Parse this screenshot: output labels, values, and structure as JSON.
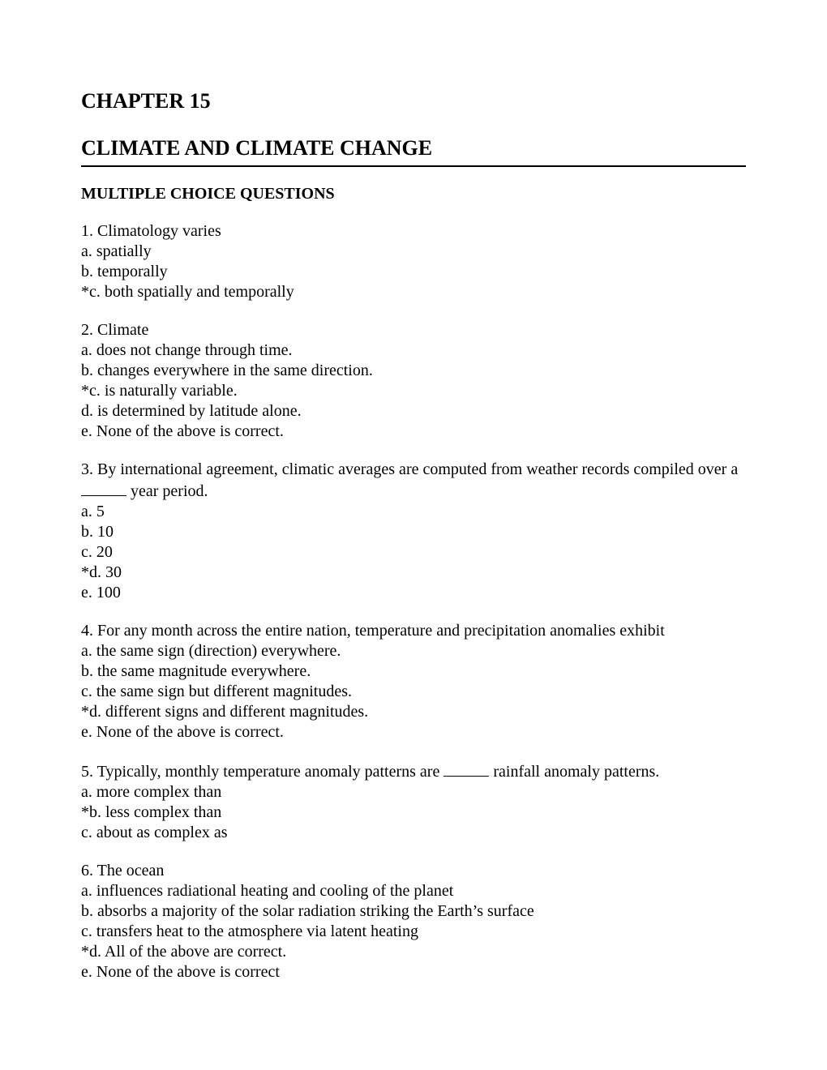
{
  "chapter_label": "CHAPTER 15",
  "title": "CLIMATE AND CLIMATE CHANGE",
  "section_heading": "MULTIPLE CHOICE QUESTIONS",
  "questions": [
    {
      "number": "1.",
      "stem": "Climatology varies",
      "stem_has_blank": false,
      "choices": [
        {
          "letter": "a.",
          "text": "spatially",
          "correct": false
        },
        {
          "letter": "b.",
          "text": "temporally",
          "correct": false
        },
        {
          "letter": "*c.",
          "text": "both spatially and temporally",
          "correct": true
        }
      ]
    },
    {
      "number": "2.",
      "stem": "Climate",
      "stem_has_blank": false,
      "choices": [
        {
          "letter": "a.",
          "text": "does not change through time.",
          "correct": false
        },
        {
          "letter": "b.",
          "text": "changes everywhere in the same direction.",
          "correct": false
        },
        {
          "letter": "*c.",
          "text": "is naturally variable.",
          "correct": true
        },
        {
          "letter": "d.",
          "text": "is determined by latitude alone.",
          "correct": false
        },
        {
          "letter": "e.",
          "text": "None of the above is correct.",
          "correct": false
        }
      ]
    },
    {
      "number": "3.",
      "stem_pre": "By international agreement, climatic averages are computed from weather records compiled over a ",
      "stem_post": " year period.",
      "stem_has_blank": true,
      "choices": [
        {
          "letter": "a.",
          "text": "5",
          "correct": false
        },
        {
          "letter": "b.",
          "text": "10",
          "correct": false
        },
        {
          "letter": "c.",
          "text": "20",
          "correct": false
        },
        {
          "letter": "*d.",
          "text": "30",
          "correct": true
        },
        {
          "letter": "e.",
          "text": "100",
          "correct": false
        }
      ]
    },
    {
      "number": "4.",
      "stem": "For any month across the entire nation, temperature and precipitation anomalies exhibit",
      "stem_has_blank": false,
      "choices": [
        {
          "letter": "a.",
          "text": "the same sign (direction) everywhere.",
          "correct": false
        },
        {
          "letter": "b.",
          "text": "the same magnitude everywhere.",
          "correct": false
        },
        {
          "letter": "c.",
          "text": "the same sign but different magnitudes.",
          "correct": false
        },
        {
          "letter": "*d.",
          "text": "different signs and different magnitudes.",
          "correct": true
        },
        {
          "letter": "e.",
          "text": "None of the above is correct.",
          "correct": false
        }
      ]
    },
    {
      "number": "5.",
      "stem_pre": "Typically, monthly temperature anomaly patterns are ",
      "stem_post": " rainfall anomaly patterns.",
      "stem_has_blank": true,
      "choices": [
        {
          "letter": "a.",
          "text": "more complex than",
          "correct": false
        },
        {
          "letter": "*b.",
          "text": "less complex than",
          "correct": true
        },
        {
          "letter": "c.",
          "text": "about as complex as",
          "correct": false
        }
      ]
    },
    {
      "number": "6.",
      "stem": "The ocean",
      "stem_has_blank": false,
      "choices": [
        {
          "letter": "a.",
          "text": "influences radiational heating and cooling of the planet",
          "correct": false
        },
        {
          "letter": "b.",
          "text": "absorbs a majority of the solar radiation striking the Earth’s surface",
          "correct": false
        },
        {
          "letter": "c.",
          "text": "transfers heat to the atmosphere via latent heating",
          "correct": false
        },
        {
          "letter": "*d.",
          "text": "All of the above are correct.",
          "correct": true
        },
        {
          "letter": "e.",
          "text": "None of the above is correct",
          "correct": false
        }
      ]
    }
  ]
}
